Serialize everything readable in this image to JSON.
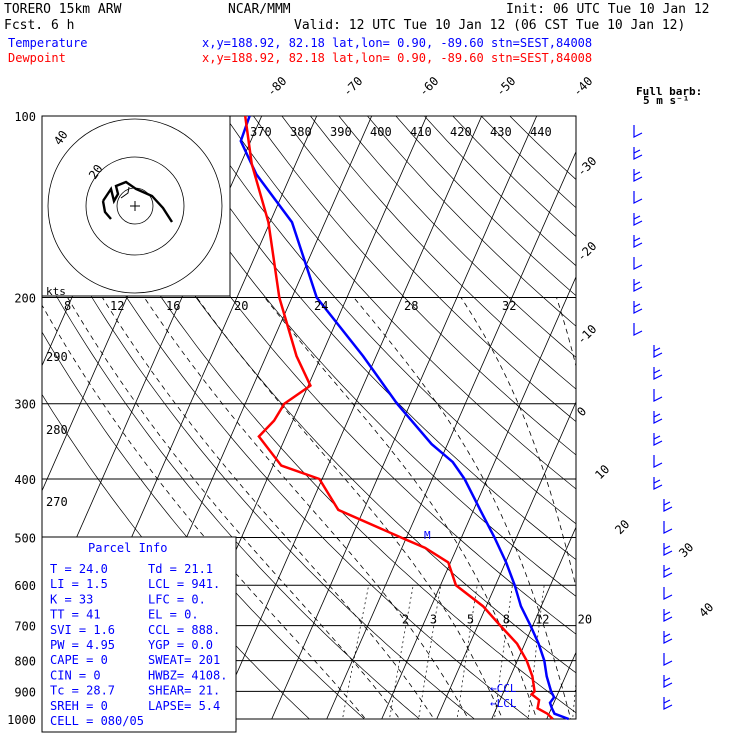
{
  "header": {
    "model": "TORERO  15km ARW",
    "org": "NCAR/MMM",
    "init": "Init: 06 UTC Tue 10 Jan 12",
    "fcst": "Fcst.    6 h",
    "valid": "Valid: 12 UTC Tue 10 Jan 12 (06 CST Tue 10 Jan 12)"
  },
  "legend": {
    "temperature": {
      "label": "Temperature",
      "location": "x,y=188.92, 82.18   lat,lon=  0.90, -89.60  stn=SEST,84008",
      "color": "#0000ff"
    },
    "dewpoint": {
      "label": "Dewpoint",
      "location": "x,y=188.92, 82.18   lat,lon=  0.90, -89.60  stn=SEST,84008",
      "color": "#ff0000"
    }
  },
  "barb_legend": {
    "title": "Full barb:",
    "value": "5 m s⁻¹"
  },
  "chart_data": {
    "type": "line",
    "diagram": "skew-T log-p",
    "y_axis": {
      "ticks": [
        100,
        200,
        300,
        400,
        500,
        600,
        700,
        800,
        900,
        1000
      ]
    },
    "isotherm_labels": [
      -80,
      -70,
      -60,
      -50,
      -40,
      -30,
      -20,
      -10,
      0,
      10,
      20,
      30,
      40
    ],
    "theta_labels": [
      370,
      380,
      390,
      400,
      410,
      420,
      430,
      440
    ],
    "hodograph_speed_labels": [
      8,
      12,
      16,
      20,
      24,
      28,
      32
    ],
    "hodograph_unit": "kts",
    "hodograph_rings": [
      20,
      40
    ],
    "dry_adiabat_labels": [
      290,
      280,
      270
    ],
    "mixing_ratio_labels": [
      2,
      3,
      5,
      8,
      12,
      20
    ],
    "series": [
      {
        "name": "Temperature",
        "color": "#0000ff",
        "points": [
          [
            1000,
            24.0
          ],
          [
            980,
            21.0
          ],
          [
            960,
            20.1
          ],
          [
            940,
            19.3
          ],
          [
            920,
            19.6
          ],
          [
            900,
            18.6
          ],
          [
            850,
            16.6
          ],
          [
            800,
            14.9
          ],
          [
            750,
            12.5
          ],
          [
            700,
            9.6
          ],
          [
            650,
            6.3
          ],
          [
            600,
            3.5
          ],
          [
            550,
            0.1
          ],
          [
            500,
            -4.0
          ],
          [
            450,
            -8.8
          ],
          [
            400,
            -14.1
          ],
          [
            375,
            -17.6
          ],
          [
            350,
            -22.9
          ],
          [
            300,
            -32.4
          ],
          [
            250,
            -42.4
          ],
          [
            200,
            -55.5
          ],
          [
            150,
            -66.0
          ],
          [
            125,
            -76.3
          ],
          [
            110,
            -81.8
          ],
          [
            100,
            -82.2
          ]
        ]
      },
      {
        "name": "Dewpoint",
        "color": "#ff0000",
        "points": [
          [
            1000,
            21.1
          ],
          [
            980,
            19.7
          ],
          [
            960,
            17.5
          ],
          [
            930,
            17.1
          ],
          [
            910,
            15.3
          ],
          [
            900,
            15.6
          ],
          [
            850,
            14.0
          ],
          [
            800,
            11.7
          ],
          [
            750,
            8.6
          ],
          [
            700,
            4.1
          ],
          [
            650,
            -0.6
          ],
          [
            600,
            -7.2
          ],
          [
            550,
            -10.4
          ],
          [
            520,
            -15.8
          ],
          [
            500,
            -21.0
          ],
          [
            450,
            -34.6
          ],
          [
            400,
            -40.5
          ],
          [
            380,
            -48.5
          ],
          [
            340,
            -54.9
          ],
          [
            320,
            -53.4
          ],
          [
            300,
            -52.9
          ],
          [
            280,
            -49.6
          ],
          [
            250,
            -54.5
          ],
          [
            200,
            -62.3
          ],
          [
            150,
            -70.3
          ],
          [
            120,
            -78.0
          ],
          [
            100,
            -83.0
          ]
        ]
      }
    ],
    "annotations": [
      {
        "text": "LCL",
        "p": 941
      },
      {
        "text": "CCL",
        "p": 888
      },
      {
        "text": "M",
        "p": 495
      }
    ]
  },
  "parcel": {
    "title": "Parcel Info",
    "rows": [
      [
        "T   =  24.0",
        "Td =  21.1"
      ],
      [
        "LI  =   1.5",
        "LCL =  941."
      ],
      [
        "K   =    33",
        "LFC =    0."
      ],
      [
        "TT  =    41",
        "EL  =    0."
      ],
      [
        "SVI =   1.6",
        "CCL =  888."
      ],
      [
        "PW  =  4.95",
        "YGP =  0.0"
      ],
      [
        "CAPE =    0",
        "SWEAT= 201"
      ],
      [
        "CIN  =    0",
        "HWBZ= 4108."
      ],
      [
        "Tc  =  28.7",
        "SHEAR=  21."
      ],
      [
        "SREH =    0",
        "LAPSE=  5.4"
      ],
      [
        "CELL = 080/05",
        ""
      ]
    ]
  }
}
